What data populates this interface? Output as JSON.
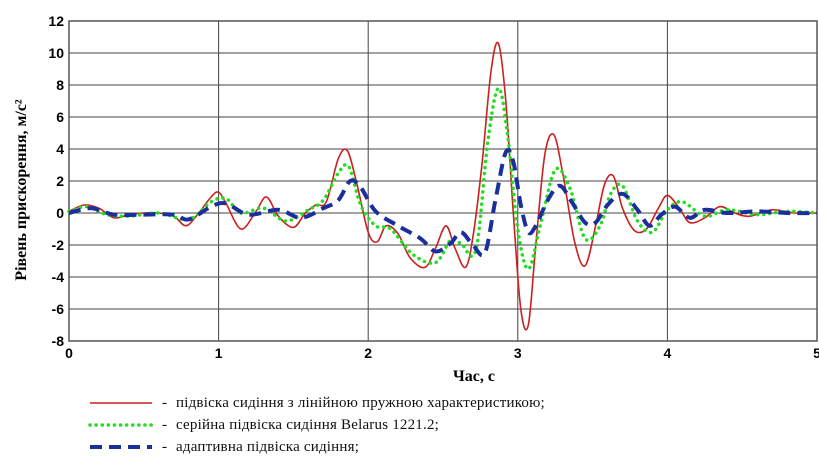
{
  "chart_data": {
    "type": "line",
    "xlabel": "Час, с",
    "ylabel": "Рівень прискорення, м/с²",
    "xlim": [
      0,
      5
    ],
    "ylim": [
      -8,
      12
    ],
    "xticks": [
      0,
      1,
      2,
      3,
      4,
      5
    ],
    "yticks": [
      -8,
      -6,
      -4,
      -2,
      0,
      2,
      4,
      6,
      8,
      10,
      12
    ],
    "grid": true,
    "legend_position": "bottom",
    "series": [
      {
        "name": "підвіска сидіння з лінійною пружною характеристикою;",
        "color": "#cc1f1f",
        "style": "solid",
        "x": [
          0,
          0.1,
          0.2,
          0.3,
          0.4,
          0.5,
          0.6,
          0.7,
          0.78,
          0.85,
          0.95,
          1.0,
          1.05,
          1.15,
          1.25,
          1.32,
          1.4,
          1.5,
          1.58,
          1.65,
          1.72,
          1.8,
          1.86,
          1.92,
          2.0,
          2.06,
          2.12,
          2.2,
          2.28,
          2.38,
          2.45,
          2.52,
          2.58,
          2.65,
          2.7,
          2.76,
          2.82,
          2.87,
          2.92,
          2.97,
          3.02,
          3.07,
          3.12,
          3.18,
          3.24,
          3.3,
          3.38,
          3.45,
          3.52,
          3.58,
          3.64,
          3.7,
          3.78,
          3.86,
          3.94,
          4.0,
          4.08,
          4.15,
          4.25,
          4.35,
          4.45,
          4.55,
          4.7,
          4.85,
          5.0
        ],
        "y": [
          0.1,
          0.5,
          0.3,
          -0.3,
          -0.1,
          0.0,
          0.0,
          -0.2,
          -0.8,
          -0.2,
          1.0,
          1.3,
          0.6,
          -1.0,
          0.1,
          1.0,
          -0.2,
          -0.9,
          0.0,
          0.5,
          0.7,
          3.4,
          3.9,
          2.0,
          -1.2,
          -1.8,
          -0.8,
          -1.3,
          -2.8,
          -3.4,
          -2.2,
          -0.8,
          -2.2,
          -3.4,
          -1.5,
          3.0,
          8.8,
          10.6,
          7.0,
          0.0,
          -6.0,
          -7.0,
          -2.0,
          3.6,
          4.9,
          2.5,
          -1.8,
          -3.3,
          -0.8,
          1.8,
          2.3,
          0.3,
          -1.1,
          -1.0,
          0.3,
          1.1,
          0.3,
          -0.6,
          -0.3,
          0.4,
          0.0,
          -0.2,
          0.2,
          0.0,
          0.0
        ]
      },
      {
        "name": "серійна підвіска сидіння Belarus 1221.2;",
        "color": "#22dd22",
        "style": "dotted",
        "x": [
          0,
          0.12,
          0.25,
          0.4,
          0.6,
          0.8,
          0.95,
          1.05,
          1.15,
          1.3,
          1.45,
          1.6,
          1.7,
          1.8,
          1.87,
          1.95,
          2.05,
          2.15,
          2.3,
          2.45,
          2.55,
          2.62,
          2.72,
          2.8,
          2.87,
          2.93,
          3.0,
          3.07,
          3.15,
          3.25,
          3.35,
          3.45,
          3.55,
          3.62,
          3.7,
          3.8,
          3.9,
          4.0,
          4.1,
          4.25,
          4.4,
          4.6,
          4.8,
          5.0
        ],
        "y": [
          0.1,
          0.4,
          -0.1,
          -0.2,
          0.0,
          -0.4,
          0.7,
          0.9,
          0.0,
          0.3,
          -0.5,
          0.2,
          0.8,
          2.5,
          2.9,
          0.5,
          -0.8,
          -1.0,
          -2.6,
          -3.1,
          -1.7,
          -1.9,
          -2.3,
          4.5,
          7.8,
          5.0,
          -1.0,
          -3.5,
          -0.8,
          2.7,
          1.5,
          -1.6,
          -0.8,
          1.2,
          1.7,
          -0.5,
          -1.2,
          0.2,
          0.7,
          -0.2,
          0.2,
          -0.1,
          0.1,
          0.0
        ]
      },
      {
        "name": "адаптивна підвіска сидіння;",
        "color": "#1a2f9c",
        "style": "dashed",
        "x": [
          0,
          0.15,
          0.3,
          0.5,
          0.7,
          0.8,
          0.95,
          1.05,
          1.2,
          1.4,
          1.55,
          1.7,
          1.8,
          1.88,
          1.95,
          2.05,
          2.2,
          2.35,
          2.45,
          2.55,
          2.62,
          2.7,
          2.78,
          2.85,
          2.92,
          2.97,
          3.02,
          3.07,
          3.12,
          3.2,
          3.28,
          3.36,
          3.45,
          3.52,
          3.6,
          3.7,
          3.8,
          3.88,
          3.96,
          4.05,
          4.15,
          4.25,
          4.4,
          4.6,
          4.8,
          5.0
        ],
        "y": [
          0.0,
          0.3,
          -0.1,
          -0.1,
          -0.1,
          -0.4,
          0.4,
          0.6,
          -0.1,
          0.2,
          -0.3,
          0.3,
          0.8,
          2.0,
          1.6,
          0.1,
          -0.8,
          -1.6,
          -2.4,
          -1.9,
          -1.2,
          -2.0,
          -2.5,
          0.8,
          3.8,
          3.2,
          0.5,
          -1.2,
          -0.8,
          0.8,
          1.7,
          0.7,
          -0.6,
          -0.6,
          0.5,
          1.2,
          0.2,
          -0.8,
          -0.1,
          0.4,
          -0.3,
          0.2,
          0.0,
          0.1,
          0.0,
          0.0
        ]
      }
    ]
  },
  "legend_dash": "-"
}
